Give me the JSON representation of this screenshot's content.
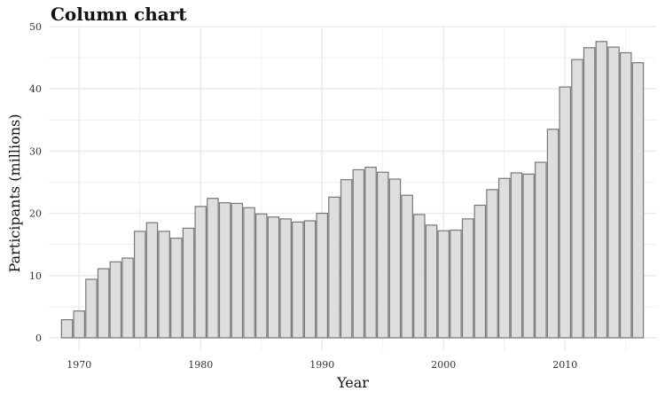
{
  "chart_data": {
    "type": "bar",
    "title": "Column chart",
    "xlabel": "Year",
    "ylabel": "Participants (millions)",
    "xlim": [
      1967.5,
      2017.5
    ],
    "ylim": [
      -2,
      50
    ],
    "x_ticks": [
      "1970",
      "1980",
      "1990",
      "2000",
      "2010"
    ],
    "y_ticks": [
      "0",
      "10",
      "20",
      "30",
      "40",
      "50"
    ],
    "grid": true,
    "legend": "none",
    "bar_fill": "#dedede",
    "bar_stroke": "#777777",
    "grid_color": "#ebebeb",
    "x": [
      1969,
      1970,
      1971,
      1972,
      1973,
      1974,
      1975,
      1976,
      1977,
      1978,
      1979,
      1980,
      1981,
      1982,
      1983,
      1984,
      1985,
      1986,
      1987,
      1988,
      1989,
      1990,
      1991,
      1992,
      1993,
      1994,
      1995,
      1996,
      1997,
      1998,
      1999,
      2000,
      2001,
      2002,
      2003,
      2004,
      2005,
      2006,
      2007,
      2008,
      2009,
      2010,
      2011,
      2012,
      2013,
      2014,
      2015,
      2016
    ],
    "values": [
      2.9,
      4.3,
      9.4,
      11.1,
      12.2,
      12.8,
      17.1,
      18.5,
      17.1,
      16.0,
      17.6,
      21.1,
      22.4,
      21.7,
      21.6,
      20.9,
      19.9,
      19.4,
      19.1,
      18.6,
      18.8,
      20.0,
      22.6,
      25.4,
      27.0,
      27.4,
      26.6,
      25.5,
      22.9,
      19.8,
      18.1,
      17.2,
      17.3,
      19.1,
      21.3,
      23.8,
      25.6,
      26.5,
      26.3,
      28.2,
      33.5,
      40.3,
      44.7,
      46.6,
      47.6,
      46.7,
      45.8,
      44.2
    ]
  }
}
